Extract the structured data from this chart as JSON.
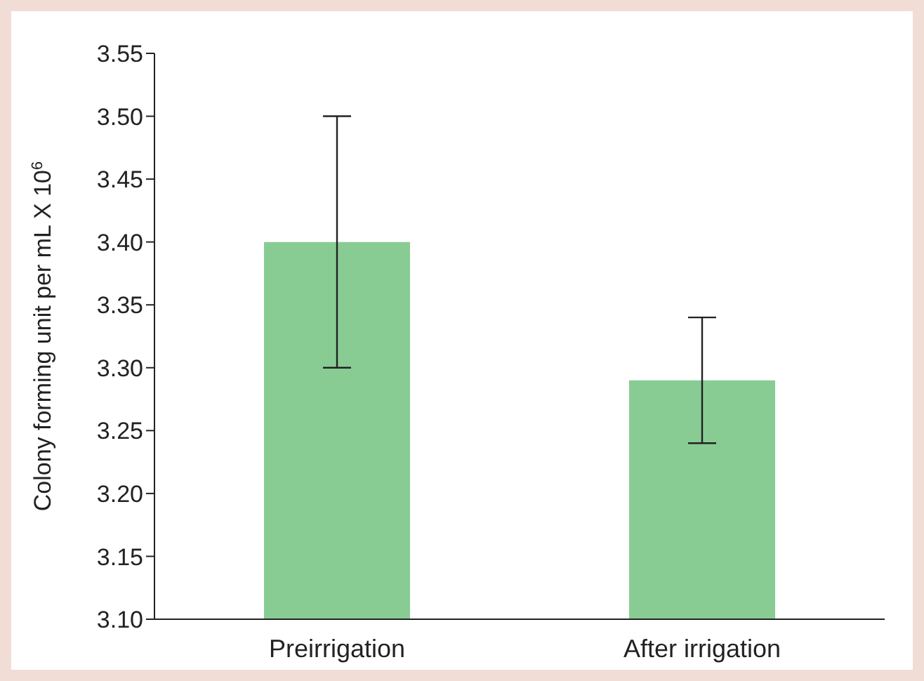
{
  "chart_data": {
    "type": "bar",
    "ylabel": "Colony forming unit per mL X 10$^{6}$",
    "categories": [
      "Preirrigation",
      "After irrigation"
    ],
    "values": [
      3.4,
      3.29
    ],
    "errors": [
      0.1,
      0.05
    ],
    "color": "#88cc94",
    "ylim": [
      3.1,
      3.55
    ],
    "yticks": [
      {
        "value": 3.1,
        "label": "3.10"
      },
      3.15,
      {
        "value": 3.2,
        "label": "3.20"
      },
      3.25,
      {
        "value": 3.3,
        "label": "3.30"
      },
      3.35,
      {
        "value": 3.4,
        "label": "3.40"
      },
      3.45,
      {
        "value": 3.5,
        "label": "3.50"
      },
      3.55
    ]
  }
}
